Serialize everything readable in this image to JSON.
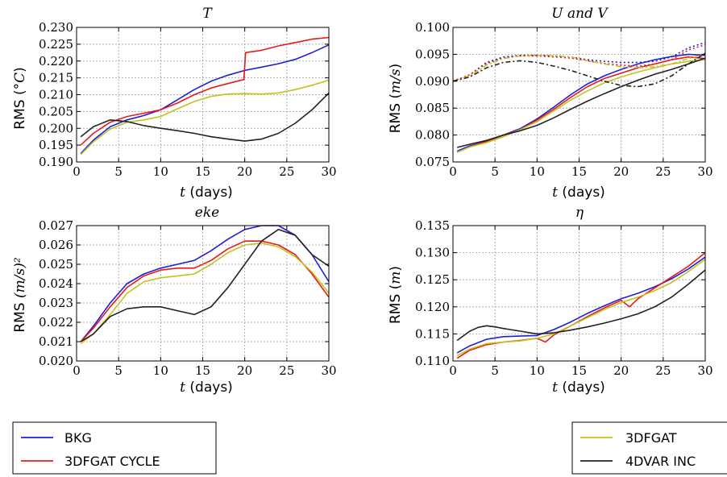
{
  "chart_data": [
    {
      "type": "line",
      "title": "T",
      "ylabel": {
        "prefix": "RMS (",
        "unit": "°C",
        "suffix": ")"
      },
      "xlabel": {
        "var": "t",
        "unit": " (days)"
      },
      "xlim": [
        0,
        30
      ],
      "ylim": [
        0.19,
        0.23
      ],
      "xticks": [
        "0",
        "5",
        "10",
        "15",
        "20",
        "25",
        "30"
      ],
      "yticks": [
        "0.190",
        "0.195",
        "0.200",
        "0.205",
        "0.210",
        "0.215",
        "0.220",
        "0.225",
        "0.230"
      ],
      "grid": true,
      "series": [
        {
          "legend_key": "bkg",
          "x": [
            0.5,
            2,
            4,
            6,
            8,
            10,
            12,
            14,
            16,
            18,
            20,
            22,
            24,
            26,
            28,
            30
          ],
          "y": [
            0.1925,
            0.1965,
            0.2005,
            0.2025,
            0.2038,
            0.2055,
            0.2085,
            0.2115,
            0.214,
            0.2158,
            0.2172,
            0.2182,
            0.2192,
            0.2205,
            0.2225,
            0.2248
          ]
        },
        {
          "legend_key": "cycle",
          "x": [
            0.5,
            2,
            4,
            6,
            8,
            10,
            12,
            14,
            16,
            18,
            19.9,
            20.1,
            22,
            24,
            26,
            28,
            30
          ],
          "y": [
            0.195,
            0.1985,
            0.2018,
            0.2035,
            0.2045,
            0.2055,
            0.2075,
            0.21,
            0.212,
            0.2133,
            0.2145,
            0.2225,
            0.2232,
            0.2245,
            0.2255,
            0.2265,
            0.227
          ]
        },
        {
          "legend_key": "fgat",
          "x": [
            0.5,
            2,
            4,
            6,
            8,
            10,
            12,
            14,
            16,
            18,
            20,
            22,
            24,
            26,
            28,
            30
          ],
          "y": [
            0.1922,
            0.196,
            0.1998,
            0.2018,
            0.2025,
            0.2035,
            0.2058,
            0.208,
            0.2095,
            0.2102,
            0.2103,
            0.2102,
            0.2105,
            0.2115,
            0.2128,
            0.2143
          ]
        },
        {
          "legend_key": "var",
          "x": [
            0.5,
            2,
            4,
            6,
            8,
            10,
            12,
            14,
            16,
            18,
            20,
            22,
            24,
            26,
            28,
            30
          ],
          "y": [
            0.1975,
            0.2005,
            0.2025,
            0.202,
            0.2008,
            0.2,
            0.1993,
            0.1985,
            0.1975,
            0.1968,
            0.1962,
            0.1968,
            0.1985,
            0.2015,
            0.2055,
            0.2105
          ]
        }
      ]
    },
    {
      "type": "line",
      "title": "U and V",
      "ylabel": {
        "prefix": "RMS (",
        "unit": "m/s",
        "suffix": ")"
      },
      "xlabel": {
        "var": "t",
        "unit": " (days)"
      },
      "xlim": [
        0,
        30
      ],
      "ylim": [
        0.075,
        0.1
      ],
      "xticks": [
        "0",
        "5",
        "10",
        "15",
        "20",
        "25",
        "30"
      ],
      "yticks": [
        "0.075",
        "0.080",
        "0.085",
        "0.090",
        "0.095",
        "0.100"
      ],
      "grid": true,
      "series": [
        {
          "legend_key": "bkg",
          "x": [
            0.5,
            2,
            4,
            6,
            8,
            10,
            12,
            14,
            16,
            18,
            20,
            22,
            24,
            26,
            28,
            30
          ],
          "y": [
            0.077,
            0.078,
            0.0788,
            0.08,
            0.0812,
            0.083,
            0.0852,
            0.0875,
            0.0895,
            0.091,
            0.0922,
            0.0932,
            0.094,
            0.0946,
            0.095,
            0.0948
          ]
        },
        {
          "legend_key": "cycle",
          "x": [
            0.5,
            2,
            4,
            6,
            8,
            10,
            12,
            14,
            16,
            18,
            20,
            22,
            24,
            26,
            28,
            30
          ],
          "y": [
            0.0768,
            0.0778,
            0.0788,
            0.08,
            0.081,
            0.0828,
            0.0848,
            0.087,
            0.089,
            0.0905,
            0.0915,
            0.0925,
            0.0932,
            0.094,
            0.0945,
            0.0942
          ]
        },
        {
          "legend_key": "fgat",
          "x": [
            0.5,
            2,
            4,
            6,
            8,
            10,
            12,
            14,
            16,
            18,
            20,
            22,
            24,
            26,
            28,
            30
          ],
          "y": [
            0.0768,
            0.0778,
            0.0786,
            0.0797,
            0.081,
            0.0825,
            0.0845,
            0.0865,
            0.0882,
            0.0897,
            0.0908,
            0.0917,
            0.0925,
            0.0932,
            0.0937,
            0.094
          ]
        },
        {
          "legend_key": "var",
          "x": [
            0.5,
            2,
            4,
            6,
            8,
            10,
            12,
            14,
            16,
            18,
            20,
            22,
            24,
            26,
            28,
            30
          ],
          "y": [
            0.0777,
            0.0783,
            0.079,
            0.08,
            0.0808,
            0.0818,
            0.0832,
            0.0848,
            0.0863,
            0.0877,
            0.089,
            0.0902,
            0.0913,
            0.0922,
            0.0932,
            0.0943
          ]
        },
        {
          "legend_key": "bkg",
          "dash": "2,3",
          "x": [
            0,
            2,
            4,
            6,
            8,
            10,
            12,
            14,
            16,
            18,
            20,
            22,
            24,
            26,
            28,
            30
          ],
          "y": [
            0.09,
            0.0912,
            0.0935,
            0.0945,
            0.0948,
            0.0948,
            0.0947,
            0.0945,
            0.094,
            0.0937,
            0.0935,
            0.0935,
            0.0937,
            0.0945,
            0.0962,
            0.0972
          ]
        },
        {
          "legend_key": "cycle",
          "dash": "2,3",
          "x": [
            0,
            2,
            4,
            6,
            8,
            10,
            12,
            14,
            16,
            18,
            20,
            22,
            24,
            26,
            28,
            30
          ],
          "y": [
            0.09,
            0.0912,
            0.0933,
            0.0943,
            0.0947,
            0.0947,
            0.0945,
            0.0943,
            0.0938,
            0.0933,
            0.093,
            0.0928,
            0.0932,
            0.094,
            0.0958,
            0.0968
          ]
        },
        {
          "legend_key": "fgat",
          "dash": "6,3,2,3",
          "x": [
            0,
            2,
            4,
            6,
            8,
            10,
            12,
            14,
            16,
            18,
            20,
            22,
            24,
            26,
            28,
            30
          ],
          "y": [
            0.09,
            0.091,
            0.093,
            0.0942,
            0.0947,
            0.0948,
            0.0947,
            0.0945,
            0.0938,
            0.0932,
            0.0927,
            0.0925,
            0.0927,
            0.0932,
            0.0942,
            0.095
          ]
        },
        {
          "legend_key": "var",
          "dash": "6,3,2,3",
          "x": [
            0,
            2,
            4,
            6,
            8,
            10,
            12,
            14,
            16,
            18,
            20,
            22,
            24,
            26,
            28,
            30
          ],
          "y": [
            0.09,
            0.0908,
            0.0925,
            0.0935,
            0.0938,
            0.0935,
            0.0928,
            0.092,
            0.091,
            0.09,
            0.0892,
            0.089,
            0.0895,
            0.091,
            0.0932,
            0.0952
          ]
        }
      ]
    },
    {
      "type": "line",
      "title": "eke",
      "ylabel": {
        "prefix": "RMS ",
        "unit": "(m/s)²",
        "suffix": ""
      },
      "xlabel": {
        "var": "t",
        "unit": " (days)"
      },
      "xlim": [
        0,
        30
      ],
      "ylim": [
        0.02,
        0.027
      ],
      "xticks": [
        "0",
        "5",
        "10",
        "15",
        "20",
        "25",
        "30"
      ],
      "yticks": [
        "0.020",
        "0.021",
        "0.022",
        "0.023",
        "0.024",
        "0.025",
        "0.026",
        "0.027"
      ],
      "grid": true,
      "series": [
        {
          "legend_key": "bkg",
          "x": [
            0.5,
            2,
            4,
            6,
            8,
            10,
            12,
            14,
            16,
            18,
            20,
            22,
            24,
            26,
            28,
            30
          ],
          "y": [
            0.021,
            0.0218,
            0.023,
            0.024,
            0.0245,
            0.0248,
            0.025,
            0.0252,
            0.0257,
            0.0263,
            0.0268,
            0.027,
            0.027,
            0.0265,
            0.0255,
            0.0241
          ]
        },
        {
          "legend_key": "cycle",
          "x": [
            0.5,
            2,
            4,
            6,
            8,
            10,
            12,
            14,
            16,
            18,
            20,
            22,
            24,
            26,
            28,
            30
          ],
          "y": [
            0.021,
            0.0217,
            0.0228,
            0.0238,
            0.0244,
            0.0247,
            0.0248,
            0.0248,
            0.0252,
            0.0258,
            0.0262,
            0.0262,
            0.026,
            0.0255,
            0.0245,
            0.0233
          ]
        },
        {
          "legend_key": "fgat",
          "x": [
            0.5,
            2,
            4,
            6,
            8,
            10,
            12,
            14,
            16,
            18,
            20,
            22,
            24,
            26,
            28,
            30
          ],
          "y": [
            0.0209,
            0.0214,
            0.0224,
            0.0235,
            0.0241,
            0.0243,
            0.0244,
            0.0245,
            0.025,
            0.0256,
            0.026,
            0.0261,
            0.0259,
            0.0254,
            0.0246,
            0.0235
          ]
        },
        {
          "legend_key": "var",
          "x": [
            0.5,
            2,
            4,
            6,
            8,
            10,
            12,
            14,
            16,
            18,
            20,
            22,
            24,
            26,
            28,
            30
          ],
          "y": [
            0.021,
            0.0214,
            0.0223,
            0.0227,
            0.0228,
            0.0228,
            0.0226,
            0.0224,
            0.0228,
            0.0238,
            0.025,
            0.0262,
            0.0268,
            0.0265,
            0.0255,
            0.0249
          ]
        }
      ]
    },
    {
      "type": "line",
      "title": "η",
      "ylabel": {
        "prefix": "RMS (",
        "unit": "m",
        "suffix": ")"
      },
      "xlabel": {
        "var": "t",
        "unit": " (days)"
      },
      "xlim": [
        0,
        30
      ],
      "ylim": [
        0.11,
        0.135
      ],
      "xticks": [
        "0",
        "5",
        "10",
        "15",
        "20",
        "25",
        "30"
      ],
      "yticks": [
        "0.110",
        "0.115",
        "0.120",
        "0.125",
        "0.130",
        "0.135"
      ],
      "grid": true,
      "series": [
        {
          "legend_key": "bkg",
          "x": [
            0.5,
            2,
            4,
            6,
            8,
            10,
            12,
            14,
            16,
            18,
            20,
            22,
            24,
            26,
            28,
            30
          ],
          "y": [
            0.1115,
            0.1128,
            0.114,
            0.1145,
            0.1146,
            0.1147,
            0.1158,
            0.1172,
            0.1188,
            0.1202,
            0.1215,
            0.1225,
            0.1237,
            0.1252,
            0.127,
            0.1292
          ]
        },
        {
          "legend_key": "cycle",
          "x": [
            0.5,
            2,
            4,
            6,
            8,
            10,
            11,
            12,
            14,
            16,
            18,
            20,
            21,
            22,
            24,
            26,
            28,
            30
          ],
          "y": [
            0.1105,
            0.112,
            0.113,
            0.1135,
            0.1138,
            0.1142,
            0.1135,
            0.1148,
            0.1165,
            0.1182,
            0.1198,
            0.1212,
            0.12,
            0.1215,
            0.1235,
            0.1255,
            0.1275,
            0.13
          ]
        },
        {
          "legend_key": "fgat",
          "x": [
            0.5,
            2,
            4,
            6,
            8,
            10,
            12,
            14,
            16,
            18,
            20,
            22,
            24,
            26,
            28,
            30
          ],
          "y": [
            0.111,
            0.1122,
            0.1132,
            0.1135,
            0.1137,
            0.1142,
            0.115,
            0.1165,
            0.118,
            0.1195,
            0.1208,
            0.1218,
            0.123,
            0.1245,
            0.1265,
            0.1288
          ]
        },
        {
          "legend_key": "var",
          "x": [
            0.5,
            2,
            3,
            4,
            5,
            6,
            8,
            10,
            12,
            14,
            16,
            18,
            20,
            22,
            24,
            26,
            28,
            30
          ],
          "y": [
            0.1138,
            0.1155,
            0.1162,
            0.1165,
            0.1163,
            0.116,
            0.1155,
            0.115,
            0.1152,
            0.1157,
            0.1163,
            0.117,
            0.1178,
            0.1187,
            0.12,
            0.1218,
            0.1242,
            0.1268
          ]
        }
      ]
    }
  ],
  "legend": {
    "left": [
      {
        "key": "bkg",
        "label": "BKG"
      },
      {
        "key": "cycle",
        "label": "3DFGAT CYCLE"
      }
    ],
    "right": [
      {
        "key": "fgat",
        "label": "3DFGAT"
      },
      {
        "key": "var",
        "label": "4DVAR INC"
      }
    ]
  },
  "colors": {
    "bkg": "#1f1fd6",
    "cycle": "#e8191e",
    "fgat": "#c2c21c",
    "var": "#222222",
    "grid": "#9a9a9a",
    "axis": "#000000"
  }
}
